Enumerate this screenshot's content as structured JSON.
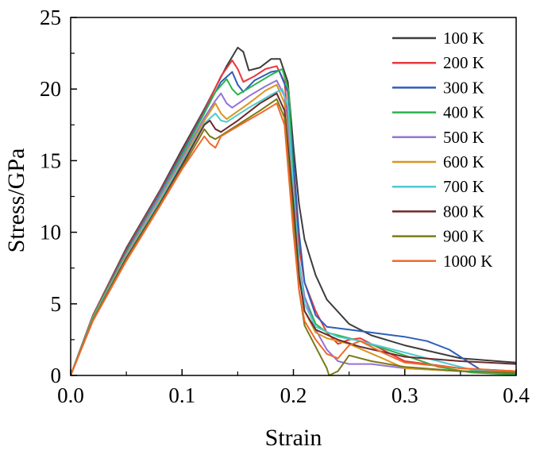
{
  "chart_data": {
    "type": "line",
    "title": "",
    "xlabel": "Strain",
    "ylabel": "Stress/GPa",
    "xlim": [
      0.0,
      0.4
    ],
    "ylim": [
      0,
      25
    ],
    "xticks": [
      0.0,
      0.1,
      0.2,
      0.3,
      0.4
    ],
    "xtick_labels": [
      "0.0",
      "0.1",
      "0.2",
      "0.3",
      "0.4"
    ],
    "yticks": [
      0,
      5,
      10,
      15,
      20,
      25
    ],
    "ytick_labels": [
      "0",
      "5",
      "10",
      "15",
      "20",
      "25"
    ],
    "grid": false,
    "legend_position": "top-right",
    "series": [
      {
        "name": "100 K",
        "color": "#3d3d3d",
        "points": [
          [
            0,
            0
          ],
          [
            0.02,
            4.2
          ],
          [
            0.05,
            8.9
          ],
          [
            0.08,
            12.9
          ],
          [
            0.1,
            15.8
          ],
          [
            0.12,
            18.6
          ],
          [
            0.14,
            21.6
          ],
          [
            0.15,
            22.9
          ],
          [
            0.155,
            22.6
          ],
          [
            0.16,
            21.3
          ],
          [
            0.17,
            21.5
          ],
          [
            0.18,
            22.1
          ],
          [
            0.188,
            22.1
          ],
          [
            0.195,
            20.5
          ],
          [
            0.2,
            16
          ],
          [
            0.205,
            12
          ],
          [
            0.21,
            9.5
          ],
          [
            0.22,
            7
          ],
          [
            0.23,
            5.3
          ],
          [
            0.25,
            3.6
          ],
          [
            0.27,
            2.8
          ],
          [
            0.3,
            2.1
          ],
          [
            0.35,
            1.2
          ],
          [
            0.4,
            0.9
          ]
        ]
      },
      {
        "name": "200 K",
        "color": "#e8383d",
        "points": [
          [
            0,
            0
          ],
          [
            0.02,
            4.2
          ],
          [
            0.05,
            8.8
          ],
          [
            0.08,
            12.8
          ],
          [
            0.1,
            15.6
          ],
          [
            0.12,
            18.5
          ],
          [
            0.135,
            20.9
          ],
          [
            0.145,
            22.0
          ],
          [
            0.15,
            21.4
          ],
          [
            0.155,
            20.5
          ],
          [
            0.165,
            20.9
          ],
          [
            0.175,
            21.4
          ],
          [
            0.185,
            21.6
          ],
          [
            0.192,
            20.5
          ],
          [
            0.2,
            14
          ],
          [
            0.205,
            9
          ],
          [
            0.21,
            6.5
          ],
          [
            0.22,
            4.5
          ],
          [
            0.23,
            3
          ],
          [
            0.24,
            2.2
          ],
          [
            0.25,
            2.5
          ],
          [
            0.26,
            2.6
          ],
          [
            0.28,
            1.8
          ],
          [
            0.3,
            1.0
          ],
          [
            0.35,
            0.5
          ],
          [
            0.4,
            0.3
          ]
        ]
      },
      {
        "name": "300 K",
        "color": "#2e5fb8",
        "points": [
          [
            0,
            0
          ],
          [
            0.02,
            4.1
          ],
          [
            0.05,
            8.7
          ],
          [
            0.08,
            12.7
          ],
          [
            0.1,
            15.5
          ],
          [
            0.12,
            18.4
          ],
          [
            0.135,
            20.5
          ],
          [
            0.145,
            21.2
          ],
          [
            0.15,
            20.3
          ],
          [
            0.155,
            19.8
          ],
          [
            0.165,
            20.6
          ],
          [
            0.18,
            21.2
          ],
          [
            0.187,
            21.3
          ],
          [
            0.195,
            19.8
          ],
          [
            0.2,
            15
          ],
          [
            0.205,
            10
          ],
          [
            0.21,
            6.5
          ],
          [
            0.22,
            4.2
          ],
          [
            0.23,
            3.4
          ],
          [
            0.25,
            3.2
          ],
          [
            0.28,
            2.9
          ],
          [
            0.3,
            2.7
          ],
          [
            0.32,
            2.4
          ],
          [
            0.34,
            1.8
          ],
          [
            0.36,
            0.8
          ],
          [
            0.37,
            0.3
          ],
          [
            0.4,
            0.1
          ]
        ]
      },
      {
        "name": "400 K",
        "color": "#2db24a",
        "points": [
          [
            0,
            0
          ],
          [
            0.02,
            4.1
          ],
          [
            0.05,
            8.6
          ],
          [
            0.08,
            12.6
          ],
          [
            0.1,
            15.4
          ],
          [
            0.12,
            18.3
          ],
          [
            0.13,
            19.8
          ],
          [
            0.14,
            20.7
          ],
          [
            0.145,
            20.0
          ],
          [
            0.15,
            19.6
          ],
          [
            0.165,
            20.3
          ],
          [
            0.18,
            21.0
          ],
          [
            0.19,
            21.4
          ],
          [
            0.196,
            19.8
          ],
          [
            0.2,
            13
          ],
          [
            0.205,
            8
          ],
          [
            0.21,
            5.5
          ],
          [
            0.22,
            3.6
          ],
          [
            0.23,
            3.0
          ],
          [
            0.26,
            2.4
          ],
          [
            0.3,
            1.4
          ],
          [
            0.33,
            0.6
          ],
          [
            0.36,
            0.2
          ],
          [
            0.4,
            0.05
          ]
        ]
      },
      {
        "name": "500 K",
        "color": "#9473d6",
        "points": [
          [
            0,
            0
          ],
          [
            0.02,
            4.0
          ],
          [
            0.05,
            8.5
          ],
          [
            0.08,
            12.5
          ],
          [
            0.1,
            15.2
          ],
          [
            0.12,
            18.0
          ],
          [
            0.13,
            19.2
          ],
          [
            0.135,
            19.7
          ],
          [
            0.14,
            19.0
          ],
          [
            0.145,
            18.7
          ],
          [
            0.16,
            19.5
          ],
          [
            0.175,
            20.2
          ],
          [
            0.185,
            20.6
          ],
          [
            0.192,
            19.5
          ],
          [
            0.2,
            13
          ],
          [
            0.205,
            8
          ],
          [
            0.21,
            5.5
          ],
          [
            0.22,
            3.2
          ],
          [
            0.23,
            1.8
          ],
          [
            0.24,
            1.0
          ],
          [
            0.25,
            0.8
          ],
          [
            0.27,
            0.8
          ],
          [
            0.3,
            0.5
          ],
          [
            0.35,
            0.3
          ],
          [
            0.4,
            0.2
          ]
        ]
      },
      {
        "name": "600 K",
        "color": "#d8961e",
        "points": [
          [
            0,
            0
          ],
          [
            0.02,
            4.0
          ],
          [
            0.05,
            8.4
          ],
          [
            0.08,
            12.3
          ],
          [
            0.1,
            15.0
          ],
          [
            0.12,
            17.8
          ],
          [
            0.13,
            19.0
          ],
          [
            0.135,
            18.3
          ],
          [
            0.14,
            17.9
          ],
          [
            0.16,
            19.0
          ],
          [
            0.175,
            19.9
          ],
          [
            0.185,
            20.3
          ],
          [
            0.192,
            19.0
          ],
          [
            0.2,
            12
          ],
          [
            0.205,
            7
          ],
          [
            0.21,
            4.5
          ],
          [
            0.22,
            3.0
          ],
          [
            0.23,
            2.6
          ],
          [
            0.25,
            2.2
          ],
          [
            0.28,
            1.2
          ],
          [
            0.3,
            0.5
          ],
          [
            0.35,
            0.3
          ],
          [
            0.4,
            0.3
          ]
        ]
      },
      {
        "name": "700 K",
        "color": "#4fcad0",
        "points": [
          [
            0,
            0
          ],
          [
            0.02,
            4.0
          ],
          [
            0.05,
            8.3
          ],
          [
            0.08,
            12.2
          ],
          [
            0.1,
            14.9
          ],
          [
            0.12,
            17.6
          ],
          [
            0.13,
            18.3
          ],
          [
            0.135,
            17.8
          ],
          [
            0.14,
            17.7
          ],
          [
            0.16,
            18.7
          ],
          [
            0.18,
            19.6
          ],
          [
            0.19,
            20.0
          ],
          [
            0.195,
            18.8
          ],
          [
            0.2,
            13
          ],
          [
            0.205,
            8
          ],
          [
            0.21,
            5
          ],
          [
            0.22,
            3.4
          ],
          [
            0.24,
            2.7
          ],
          [
            0.26,
            2.4
          ],
          [
            0.3,
            1.6
          ],
          [
            0.33,
            1.0
          ],
          [
            0.36,
            0.4
          ],
          [
            0.4,
            0.2
          ]
        ]
      },
      {
        "name": "800 K",
        "color": "#6b2b2b",
        "points": [
          [
            0,
            0
          ],
          [
            0.02,
            3.9
          ],
          [
            0.05,
            8.2
          ],
          [
            0.08,
            12.0
          ],
          [
            0.1,
            14.7
          ],
          [
            0.12,
            17.5
          ],
          [
            0.125,
            17.8
          ],
          [
            0.13,
            17.2
          ],
          [
            0.135,
            17.0
          ],
          [
            0.15,
            17.8
          ],
          [
            0.17,
            19.0
          ],
          [
            0.185,
            19.7
          ],
          [
            0.192,
            18.5
          ],
          [
            0.2,
            12
          ],
          [
            0.205,
            7
          ],
          [
            0.21,
            4.5
          ],
          [
            0.22,
            3.2
          ],
          [
            0.24,
            2.5
          ],
          [
            0.26,
            2.0
          ],
          [
            0.3,
            1.3
          ],
          [
            0.35,
            1.0
          ],
          [
            0.4,
            0.8
          ]
        ]
      },
      {
        "name": "900 K",
        "color": "#7a7a17",
        "points": [
          [
            0,
            0
          ],
          [
            0.02,
            3.9
          ],
          [
            0.05,
            8.1
          ],
          [
            0.08,
            11.9
          ],
          [
            0.1,
            14.5
          ],
          [
            0.115,
            16.5
          ],
          [
            0.12,
            17.2
          ],
          [
            0.125,
            16.7
          ],
          [
            0.13,
            16.5
          ],
          [
            0.15,
            17.5
          ],
          [
            0.17,
            18.5
          ],
          [
            0.185,
            19.3
          ],
          [
            0.192,
            18.0
          ],
          [
            0.2,
            11
          ],
          [
            0.205,
            6
          ],
          [
            0.21,
            3.5
          ],
          [
            0.22,
            2.0
          ],
          [
            0.23,
            0.5
          ],
          [
            0.232,
            0.0
          ],
          [
            0.24,
            0.3
          ],
          [
            0.25,
            1.4
          ],
          [
            0.27,
            1.0
          ],
          [
            0.3,
            0.6
          ],
          [
            0.35,
            0.3
          ],
          [
            0.4,
            0.2
          ]
        ]
      },
      {
        "name": "1000 K",
        "color": "#ef6a2b",
        "points": [
          [
            0,
            0
          ],
          [
            0.02,
            3.8
          ],
          [
            0.05,
            8.0
          ],
          [
            0.08,
            11.8
          ],
          [
            0.1,
            14.4
          ],
          [
            0.12,
            16.7
          ],
          [
            0.125,
            16.2
          ],
          [
            0.13,
            15.9
          ],
          [
            0.135,
            16.7
          ],
          [
            0.15,
            17.4
          ],
          [
            0.17,
            18.3
          ],
          [
            0.185,
            19.0
          ],
          [
            0.192,
            17.5
          ],
          [
            0.2,
            10
          ],
          [
            0.205,
            6
          ],
          [
            0.21,
            3.8
          ],
          [
            0.22,
            2.5
          ],
          [
            0.23,
            1.5
          ],
          [
            0.24,
            1.2
          ],
          [
            0.25,
            2.1
          ],
          [
            0.26,
            2.4
          ],
          [
            0.28,
            1.6
          ],
          [
            0.3,
            0.9
          ],
          [
            0.35,
            0.5
          ],
          [
            0.4,
            0.3
          ]
        ]
      }
    ]
  }
}
